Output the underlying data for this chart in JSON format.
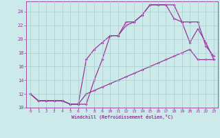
{
  "xlabel": "Windchill (Refroidissement éolien,°C)",
  "bg_color": "#cceaea",
  "line_color": "#993399",
  "xlim": [
    -0.5,
    23.5
  ],
  "ylim": [
    10,
    25.5
  ],
  "yticks": [
    10,
    12,
    14,
    16,
    18,
    20,
    22,
    24
  ],
  "xticks": [
    0,
    1,
    2,
    3,
    4,
    5,
    6,
    7,
    8,
    9,
    10,
    11,
    12,
    13,
    14,
    15,
    16,
    17,
    18,
    19,
    20,
    21,
    22,
    23
  ],
  "line1_x": [
    0,
    1,
    2,
    3,
    4,
    5,
    6,
    7,
    8,
    9,
    10,
    11,
    12,
    13,
    14,
    15,
    16,
    17,
    18,
    19,
    20,
    21,
    22,
    23
  ],
  "line1_y": [
    12,
    11,
    11,
    11,
    11,
    10.5,
    10.5,
    10.5,
    14,
    17,
    20.5,
    20.5,
    22.5,
    22.5,
    23.5,
    25,
    25,
    25,
    25,
    22.5,
    19.5,
    21.5,
    19.5,
    17
  ],
  "line2_x": [
    0,
    1,
    2,
    3,
    4,
    5,
    6,
    7,
    8,
    9,
    10,
    11,
    12,
    13,
    14,
    15,
    16,
    17,
    18,
    19,
    20,
    21,
    22,
    23
  ],
  "line2_y": [
    12,
    11,
    11,
    11,
    11,
    10.5,
    10.5,
    17,
    18.5,
    19.5,
    20.5,
    20.5,
    22,
    22.5,
    23.5,
    25,
    25,
    25,
    23,
    22.5,
    22.5,
    22.5,
    19,
    17.5
  ],
  "line3_x": [
    0,
    1,
    2,
    3,
    4,
    5,
    6,
    7,
    8,
    9,
    10,
    11,
    12,
    13,
    14,
    15,
    16,
    17,
    18,
    19,
    20,
    21,
    22,
    23
  ],
  "line3_y": [
    12,
    11,
    11,
    11,
    11,
    10.5,
    10.5,
    12,
    12.5,
    13,
    13.5,
    14,
    14.5,
    15,
    15.5,
    16,
    16.5,
    17,
    17.5,
    18,
    18.5,
    17,
    17,
    17
  ],
  "grid_color": "#aacccc",
  "marker": "D",
  "marker_size": 2,
  "linewidth": 0.9
}
